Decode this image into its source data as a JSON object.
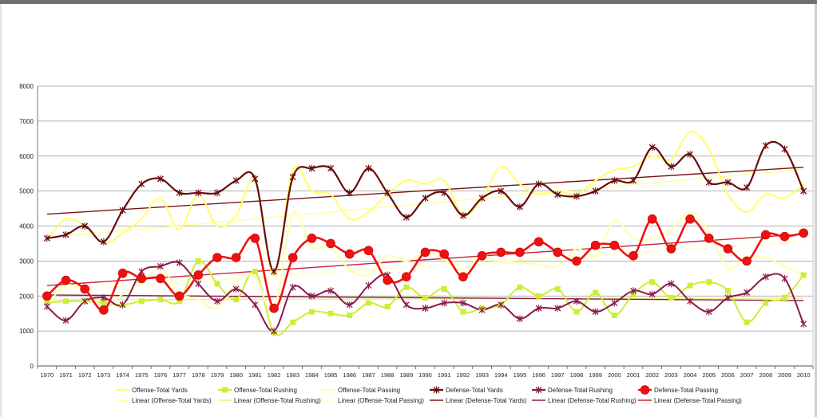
{
  "chart_data": {
    "type": "line",
    "title": "",
    "xlabel": "",
    "ylabel": "",
    "ylim": [
      0,
      8000
    ],
    "yticks": [
      0,
      1000,
      2000,
      3000,
      4000,
      5000,
      6000,
      7000,
      8000
    ],
    "grid": "horizontal",
    "legend_position": "bottom",
    "x": [
      "1970",
      "1971",
      "1972",
      "1973",
      "1974",
      "1975",
      "1976",
      "1977",
      "1978",
      "1979",
      "1980",
      "1981",
      "1982",
      "1983",
      "1984",
      "1985",
      "1986",
      "1987",
      "1988",
      "1989",
      "1990",
      "1991",
      "1992",
      "1993",
      "1994",
      "1995",
      "1996",
      "1997",
      "1998",
      "1999",
      "2000",
      "2001",
      "2002",
      "2003",
      "2004",
      "2005",
      "2006",
      "2007",
      "2008",
      "2009",
      "2010"
    ],
    "series": [
      {
        "name": "Offense-Total Yards",
        "color": "#ffff66",
        "marker": "none",
        "values": [
          3600,
          4200,
          4000,
          3500,
          3800,
          4200,
          4800,
          3900,
          4900,
          4000,
          4300,
          5300,
          2600,
          5600,
          5000,
          4900,
          4200,
          4400,
          4900,
          5300,
          5200,
          5300,
          4300,
          4800,
          5700,
          5200,
          4900,
          5000,
          4900,
          5300,
          5600,
          5700,
          6000,
          5900,
          6700,
          6200,
          4900,
          4400,
          4900,
          4800,
          5200
        ]
      },
      {
        "name": "Offense-Total Rushing",
        "color": "#ccee33",
        "marker": "square",
        "values": [
          1800,
          1850,
          1850,
          1800,
          1750,
          1850,
          1900,
          1850,
          3000,
          2350,
          1900,
          2700,
          950,
          1250,
          1550,
          1500,
          1450,
          1800,
          1700,
          2250,
          1950,
          2200,
          1550,
          1650,
          1750,
          2250,
          2000,
          2200,
          1550,
          2100,
          1450,
          2050,
          2400,
          1950,
          2300,
          2400,
          2150,
          1250,
          1800,
          1950,
          2600
        ]
      },
      {
        "name": "Offense-Total Passing",
        "color": "#ffffaa",
        "marker": "none",
        "values": [
          1750,
          2300,
          2150,
          1700,
          2050,
          2350,
          2800,
          2100,
          1900,
          1650,
          2400,
          2550,
          1600,
          4350,
          3400,
          3400,
          2750,
          2600,
          3150,
          3000,
          3250,
          3050,
          2750,
          3150,
          2950,
          2950,
          2900,
          2850,
          3350,
          3150,
          4150,
          3650,
          3650,
          3900,
          4400,
          3850,
          2800,
          3100,
          3100,
          2850,
          2600
        ]
      },
      {
        "name": "Defense-Total Yards",
        "color": "#6b0a0a",
        "marker": "x",
        "values": [
          3650,
          3750,
          4000,
          3550,
          4450,
          5200,
          5350,
          4950,
          4950,
          4950,
          5300,
          5350,
          2700,
          5400,
          5650,
          5650,
          4950,
          5650,
          4950,
          4250,
          4800,
          4950,
          4300,
          4800,
          5000,
          4550,
          5200,
          4900,
          4850,
          5000,
          5300,
          5300,
          6250,
          5700,
          6050,
          5250,
          5250,
          5100,
          6300,
          6200,
          5000
        ]
      },
      {
        "name": "Defense-Total Rushing",
        "color": "#8b1a4a",
        "marker": "x",
        "values": [
          1700,
          1300,
          1850,
          1950,
          1750,
          2700,
          2850,
          2950,
          2350,
          1850,
          2200,
          1750,
          1000,
          2250,
          2000,
          2150,
          1750,
          2300,
          2600,
          1750,
          1650,
          1800,
          1800,
          1600,
          1750,
          1350,
          1650,
          1650,
          1850,
          1550,
          1800,
          2150,
          2050,
          2350,
          1850,
          1550,
          1950,
          2100,
          2550,
          2500,
          1200
        ]
      },
      {
        "name": "Defense-Total Passing",
        "color": "#ee1111",
        "marker": "circle",
        "values": [
          2000,
          2450,
          2200,
          1600,
          2650,
          2500,
          2500,
          2000,
          2600,
          3100,
          3100,
          3650,
          1650,
          3100,
          3650,
          3500,
          3200,
          3300,
          2450,
          2550,
          3250,
          3200,
          2550,
          3150,
          3250,
          3250,
          3550,
          3250,
          3000,
          3450,
          3450,
          3150,
          4200,
          3350,
          4200,
          3650,
          3350,
          3000,
          3750,
          3700,
          3800
        ]
      }
    ],
    "trendlines": [
      {
        "name": "Linear (Offense-Total Yards)",
        "color": "#ffff99",
        "start": 3670,
        "end": 5620
      },
      {
        "name": "Linear (Offense-Total Rushing)",
        "color": "#eef07a",
        "start": 1890,
        "end": 1940
      },
      {
        "name": "Linear (Offense-Total Passing)",
        "color": "#ffffc8",
        "start": 2150,
        "end": 3550
      },
      {
        "name": "Linear (Defense-Total Yards)",
        "color": "#7a1515",
        "start": 4340,
        "end": 5680
      },
      {
        "name": "Linear (Defense-Total Rushing)",
        "color": "#8b1a4a",
        "start": 2030,
        "end": 1870
      },
      {
        "name": "Linear (Defense-Total Passing)",
        "color": "#cc2233",
        "start": 2300,
        "end": 3770
      }
    ]
  }
}
